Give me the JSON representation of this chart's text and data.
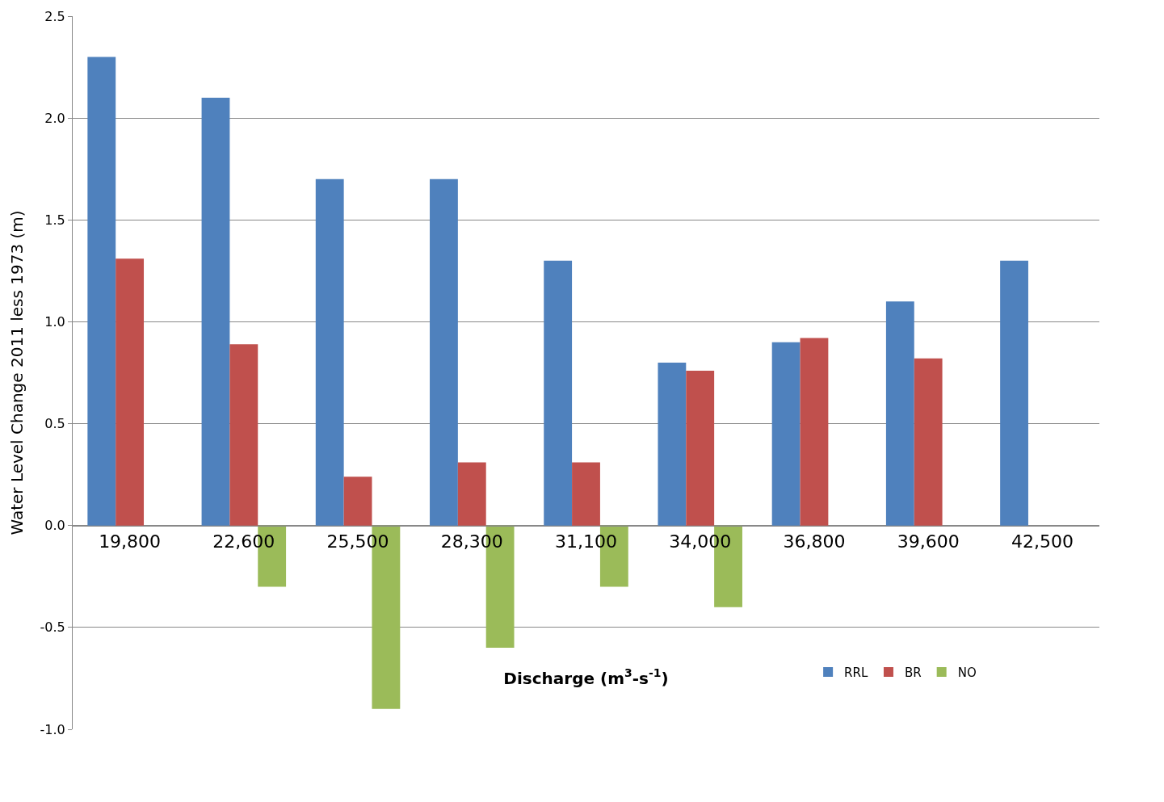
{
  "chart_data": {
    "type": "bar",
    "xlabel": "Discharge (m$^{3}$-s$^{-1}$)",
    "ylabel": "Water Level Change 2011 less 1973 (m)",
    "categories": [
      "19,800",
      "22,600",
      "25,500",
      "28,300",
      "31,100",
      "34,000",
      "36,800",
      "39,600",
      "42,500"
    ],
    "series": [
      {
        "name": "RRL",
        "color": "#4f81bd",
        "values": [
          2.3,
          2.1,
          1.7,
          1.7,
          1.3,
          0.8,
          0.9,
          1.1,
          1.3
        ]
      },
      {
        "name": "BR",
        "color": "#c0504d",
        "values": [
          1.31,
          0.89,
          0.24,
          0.31,
          0.31,
          0.76,
          0.92,
          0.82,
          null
        ]
      },
      {
        "name": "NO",
        "color": "#9bbb59",
        "values": [
          null,
          -0.3,
          -0.9,
          -0.6,
          -0.3,
          -0.4,
          null,
          null,
          null
        ]
      }
    ],
    "ylim": [
      -1.0,
      2.5
    ],
    "yticks": [
      {
        "value": -1,
        "label": "-1.0"
      },
      {
        "value": -0.5,
        "label": "-0.5"
      },
      {
        "value": 0,
        "label": "0.0"
      },
      {
        "value": 0.5,
        "label": "0.5"
      },
      {
        "value": 1,
        "label": "1.0"
      },
      {
        "value": 1.5,
        "label": "1.5"
      },
      {
        "value": 2,
        "label": "2.0"
      },
      {
        "value": 2.5,
        "label": "2.5"
      }
    ],
    "grid": "y",
    "legend": "bottom"
  }
}
